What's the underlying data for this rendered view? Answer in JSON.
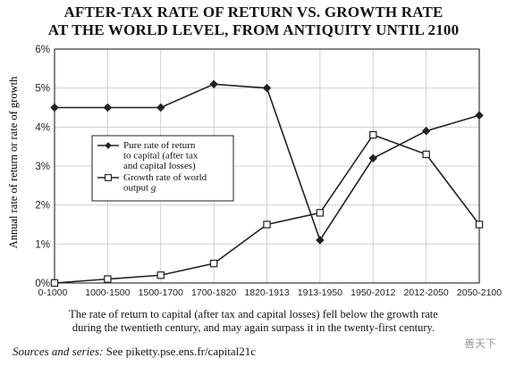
{
  "title_lines": [
    "AFTER-TAX RATE OF RETURN VS. GROWTH RATE",
    "AT THE WORLD LEVEL, FROM ANTIQUITY UNTIL 2100"
  ],
  "caption_lines": [
    "The rate of return to capital (after tax and capital losses) fell below the growth rate",
    "during the twentieth century, and may again surpass it in the twenty-first century."
  ],
  "sources_label": "Sources and series:",
  "sources_text": " See piketty.pse.ens.fr/capital21c",
  "watermark": "善天下",
  "chart_data": {
    "type": "line",
    "title": "AFTER-TAX RATE OF RETURN VS. GROWTH RATE AT THE WORLD LEVEL, FROM ANTIQUITY UNTIL 2100",
    "ylabel": "Annual rate of return or rate of growth",
    "xlabel": "",
    "categories": [
      "0-1000",
      "1000-1500",
      "1500-1700",
      "1700-1820",
      "1820-1913",
      "1913-1950",
      "1950-2012",
      "2012-2050",
      "2050-2100"
    ],
    "ylim": [
      0,
      6
    ],
    "yticks": [
      0,
      1,
      2,
      3,
      4,
      5,
      6
    ],
    "ytick_labels": [
      "0%",
      "1%",
      "2%",
      "3%",
      "4%",
      "5%",
      "6%"
    ],
    "grid": true,
    "legend_position": "center-left",
    "series": [
      {
        "name": "Pure rate of return to capital (after tax and capital losses)",
        "legend_lines": [
          "Pure rate of return",
          "to capital (after tax",
          "and capital losses)"
        ],
        "marker": "diamond",
        "color": "#222222",
        "values": [
          4.5,
          4.5,
          4.5,
          5.1,
          5.0,
          1.1,
          3.2,
          3.9,
          4.3
        ]
      },
      {
        "name": "Growth rate of world output g",
        "legend_lines": [
          "Growth rate of world",
          "output g"
        ],
        "marker": "square",
        "color": "#222222",
        "values": [
          0.0,
          0.1,
          0.2,
          0.5,
          1.5,
          1.8,
          3.8,
          3.3,
          1.5
        ]
      }
    ]
  }
}
